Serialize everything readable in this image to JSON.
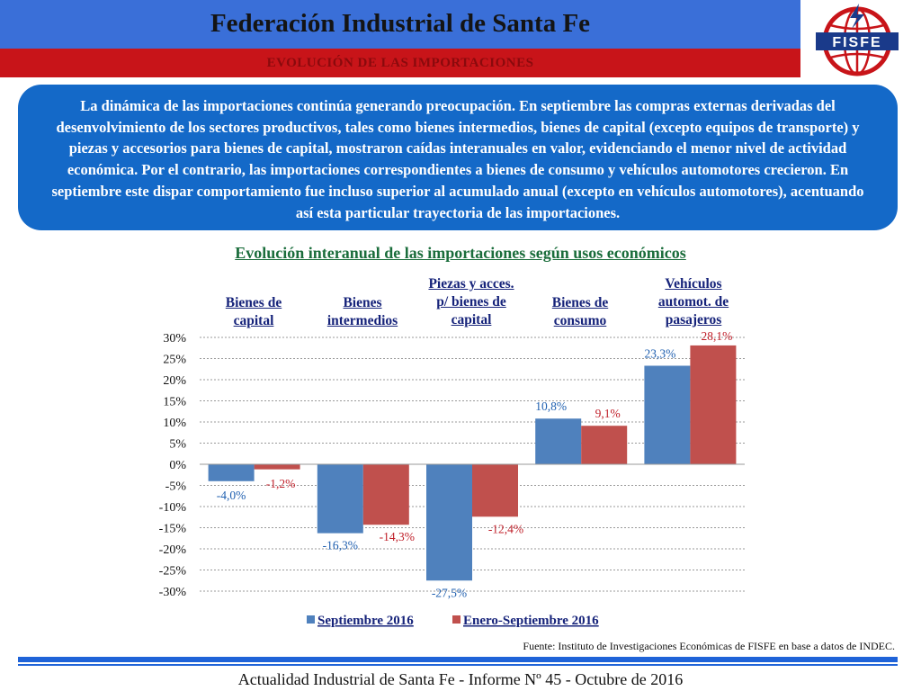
{
  "header": {
    "title": "Federación Industrial de Santa Fe",
    "subtitle": "EVOLUCIÓN DE LAS IMPORTACIONES",
    "logo_text": "FISFE"
  },
  "intro": {
    "text": "La dinámica de las importaciones continúa generando preocupación. En septiembre las compras externas derivadas del desenvolvimiento de los sectores productivos, tales como bienes intermedios, bienes de capital (excepto equipos de transporte) y piezas y accesorios para bienes de capital, mostraron caídas interanuales en valor, evidenciando el menor nivel de actividad económica. Por el contrario, las importaciones correspondientes a bienes de consumo y vehículos automotores crecieron. En septiembre este dispar comportamiento fue incluso superior al acumulado anual (excepto en vehículos automotores), acentuando así esta particular trayectoria de las importaciones."
  },
  "colors": {
    "header_blue": "#3a6fd8",
    "header_red": "#c81419",
    "box_blue": "#1469c8",
    "series_blue": "#4f81bd",
    "series_red": "#c0504d",
    "title_green": "#1a6d3b",
    "category_navy": "#16237a"
  },
  "chart_data": {
    "type": "bar",
    "title": "Evolución interanual de las importaciones según usos económicos",
    "categories": [
      "Bienes de capital",
      "Bienes intermedios",
      "Piezas y acces. p/ bienes de capital",
      "Bienes de consumo",
      "Vehículos automot. de pasajeros"
    ],
    "category_lines": [
      [
        "Bienes de",
        "capital"
      ],
      [
        "Bienes",
        "intermedios"
      ],
      [
        "Piezas y acces.",
        "p/ bienes de",
        "capital"
      ],
      [
        "Bienes de",
        "consumo"
      ],
      [
        "Vehículos",
        "automot. de",
        "pasajeros"
      ]
    ],
    "series": [
      {
        "name": "Septiembre 2016",
        "values": [
          -4.0,
          -16.3,
          -27.5,
          10.8,
          23.3
        ],
        "labels": [
          "-4,0%",
          "-16,3%",
          "-27,5%",
          "10,8%",
          "23,3%"
        ],
        "color": "#4f81bd",
        "label_color": "#2060b0"
      },
      {
        "name": "Enero-Septiembre 2016",
        "values": [
          -1.2,
          -14.3,
          -12.4,
          9.1,
          28.1
        ],
        "labels": [
          "-1,2%",
          "-14,3%",
          "-12,4%",
          "9,1%",
          "28,1%"
        ],
        "color": "#c0504d",
        "label_color": "#c0202a"
      }
    ],
    "ylim": [
      -30,
      30
    ],
    "yticks": [
      30,
      25,
      20,
      15,
      10,
      5,
      0,
      -5,
      -10,
      -15,
      -20,
      -25,
      -30
    ],
    "ytick_labels": [
      "30%",
      "25%",
      "20%",
      "15%",
      "10%",
      "5%",
      "0%",
      "-5%",
      "-10%",
      "-15%",
      "-20%",
      "-25%",
      "-30%"
    ],
    "grid": true,
    "legend": "bottom-center"
  },
  "source": "Fuente: Instituto de Investigaciones Económicas de  FISFE en base a datos de INDEC.",
  "footer": "Actualidad Industrial de Santa Fe - Informe Nº 45 - Octubre de 2016"
}
